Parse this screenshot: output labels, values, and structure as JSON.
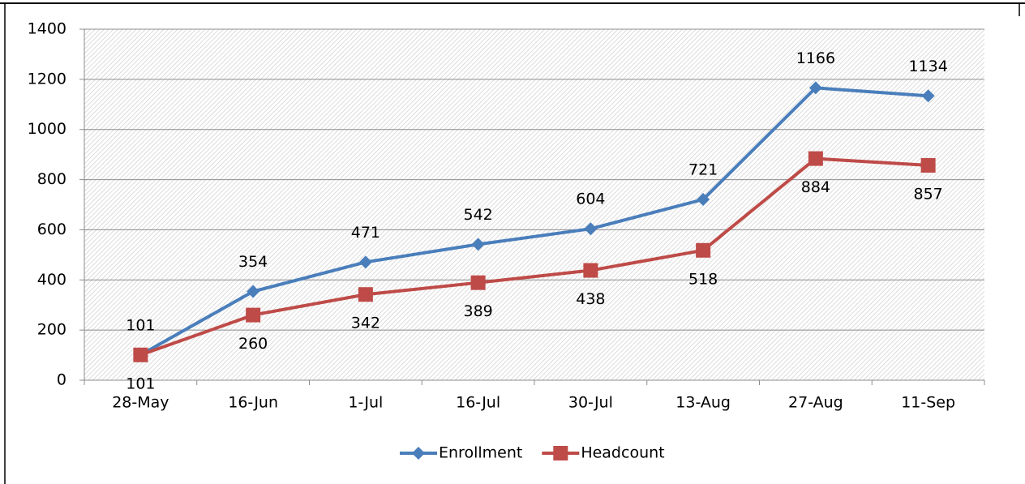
{
  "chart_data": {
    "type": "line",
    "categories": [
      "28-May",
      "16-Jun",
      "1-Jul",
      "16-Jul",
      "30-Jul",
      "13-Aug",
      "27-Aug",
      "11-Sep"
    ],
    "series": [
      {
        "name": "Enrollment",
        "color": "#4a7ebb",
        "values": [
          101,
          354,
          471,
          542,
          604,
          721,
          1166,
          1134
        ]
      },
      {
        "name": "Headcount",
        "color": "#be4b48",
        "values": [
          101,
          260,
          342,
          389,
          438,
          518,
          884,
          857
        ]
      }
    ],
    "ylim": [
      0,
      1400
    ],
    "yticks": [
      0,
      200,
      400,
      600,
      800,
      1000,
      1200,
      1400
    ],
    "grid": true,
    "legend": "bottom"
  }
}
